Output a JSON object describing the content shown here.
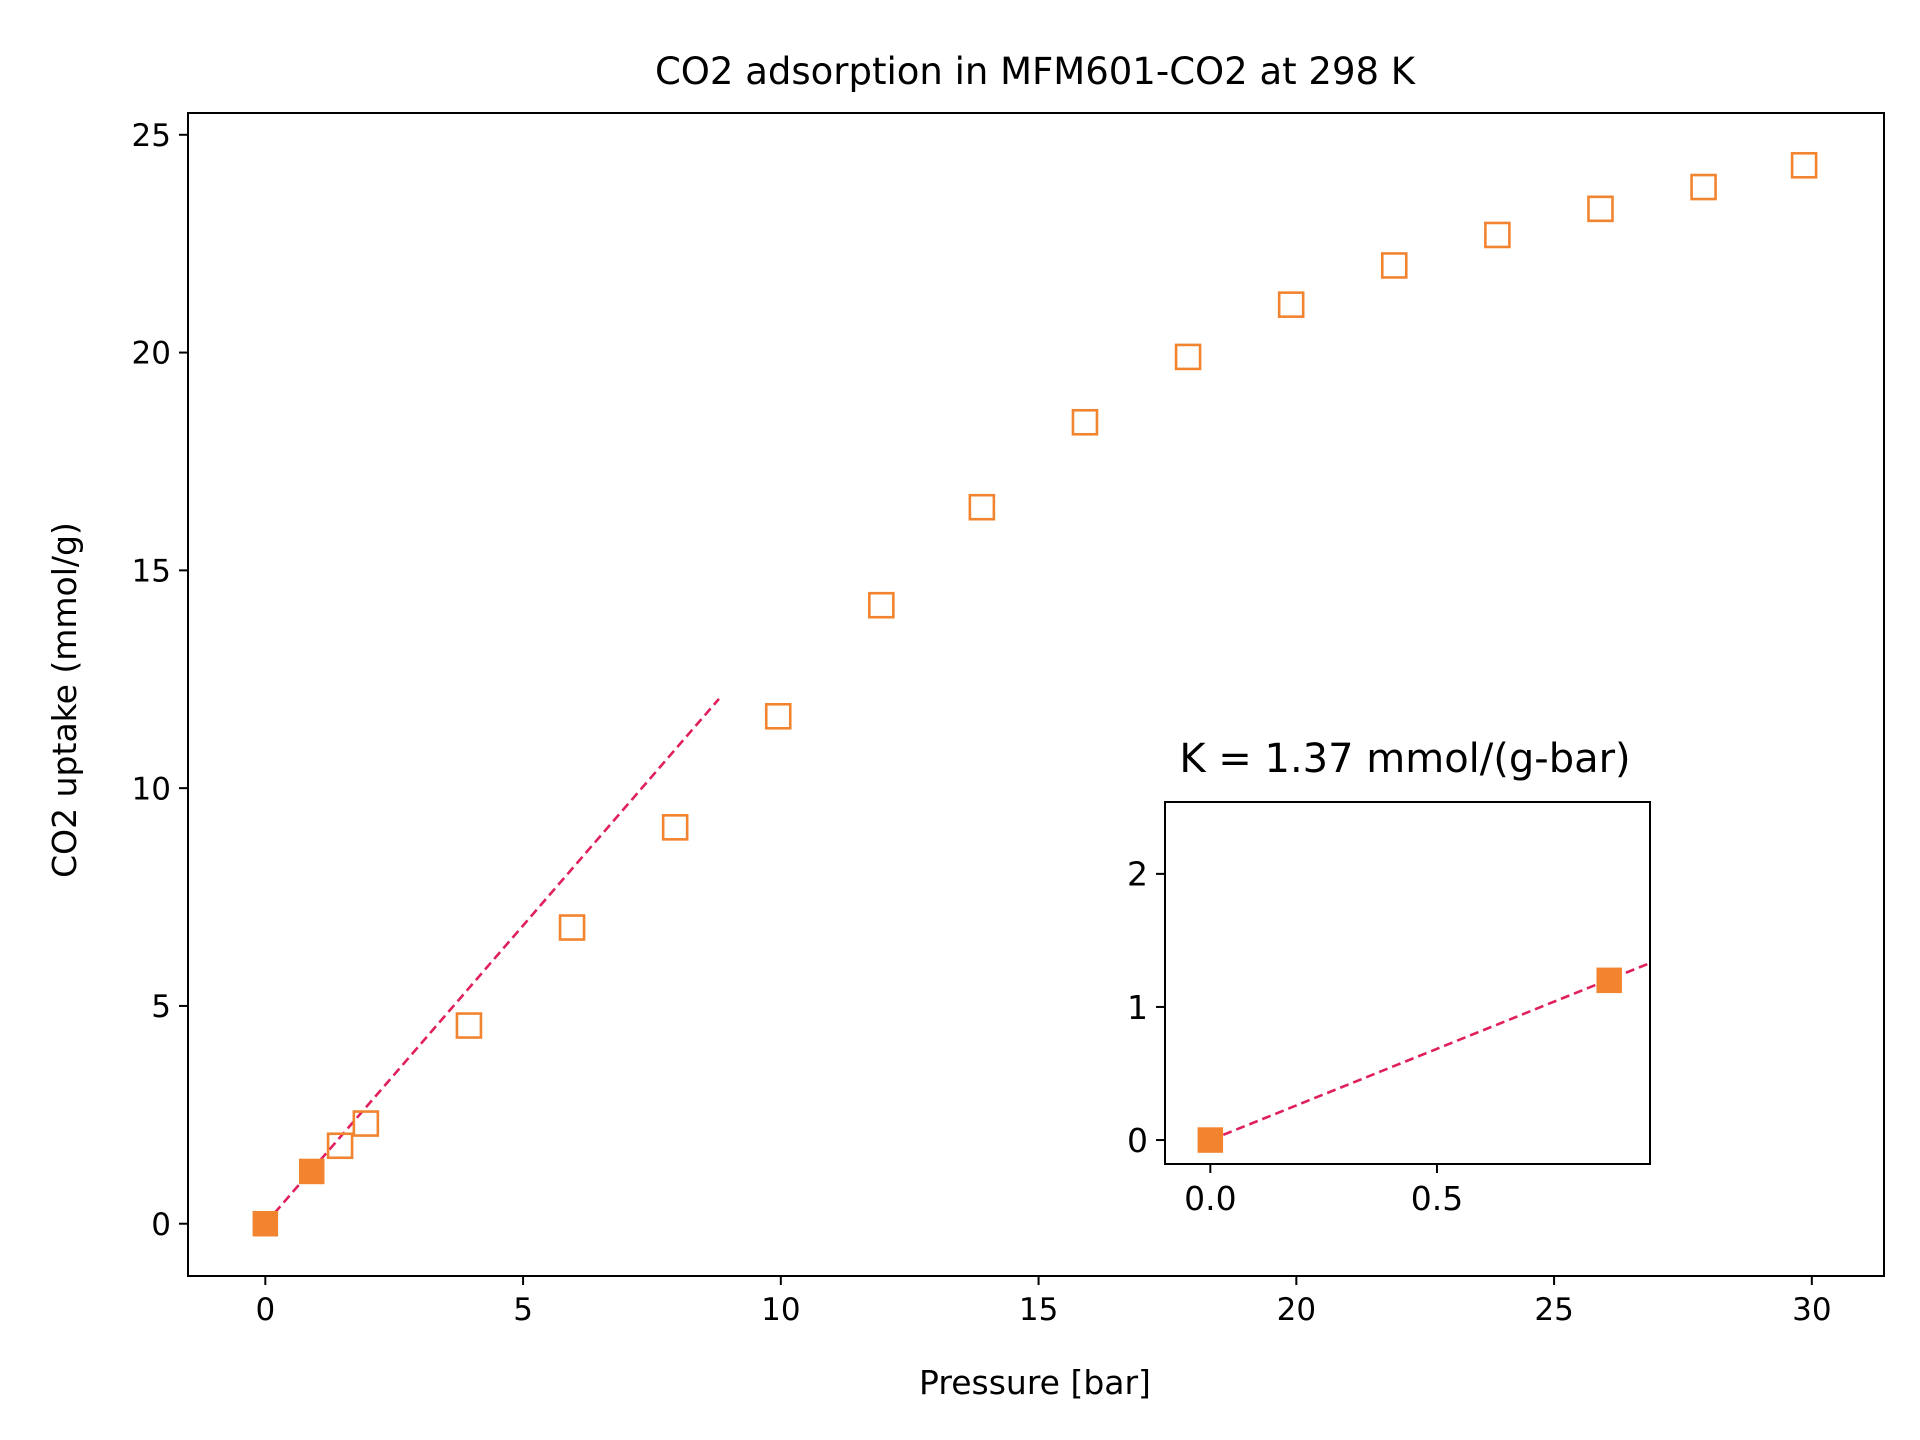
{
  "chart_data": [
    {
      "type": "scatter",
      "title": "CO2 adsorption in MFM601-CO2 at 298 K",
      "xlabel": "Pressure [bar]",
      "ylabel": "CO2 uptake (mmol/g)",
      "xlim": [
        -1.5,
        31.4
      ],
      "ylim": [
        -1.2,
        25.5
      ],
      "xticks": [
        0,
        5,
        10,
        15,
        20,
        25,
        30
      ],
      "yticks": [
        0,
        5,
        10,
        15,
        20,
        25
      ],
      "grid": false,
      "legend": "none",
      "series": [
        {
          "marker": "open-square",
          "color": "#F28430",
          "points": [
            {
              "x": 1.45,
              "y": 1.79
            },
            {
              "x": 1.95,
              "y": 2.3
            },
            {
              "x": 3.95,
              "y": 4.55
            },
            {
              "x": 5.95,
              "y": 6.8
            },
            {
              "x": 7.95,
              "y": 9.1
            },
            {
              "x": 9.95,
              "y": 11.65
            },
            {
              "x": 11.95,
              "y": 14.2
            },
            {
              "x": 13.9,
              "y": 16.45
            },
            {
              "x": 15.9,
              "y": 18.4
            },
            {
              "x": 17.9,
              "y": 19.9
            },
            {
              "x": 19.9,
              "y": 21.1
            },
            {
              "x": 21.9,
              "y": 22.0
            },
            {
              "x": 23.9,
              "y": 22.7
            },
            {
              "x": 25.9,
              "y": 23.3
            },
            {
              "x": 27.9,
              "y": 23.8
            },
            {
              "x": 29.85,
              "y": 24.3
            }
          ]
        },
        {
          "marker": "filled-square",
          "color": "#F28430",
          "points": [
            {
              "x": 0.0,
              "y": 0.0
            },
            {
              "x": 0.9,
              "y": 1.2
            }
          ]
        },
        {
          "type": "line",
          "style": "dashed",
          "color": "#E0205A",
          "points": [
            {
              "x": 0.0,
              "y": 0.0
            },
            {
              "x": 8.8,
              "y": 12.05
            }
          ]
        }
      ]
    },
    {
      "type": "scatter",
      "title": "K = 1.37 mmol/(g-bar)",
      "xlim": [
        -0.1,
        0.97
      ],
      "ylim": [
        -0.18,
        2.54
      ],
      "xticks": [
        0.0,
        0.5
      ],
      "xtick_labels": [
        "0.0",
        "0.5"
      ],
      "yticks": [
        0,
        1,
        2
      ],
      "grid": false,
      "legend": "none",
      "series": [
        {
          "marker": "filled-square",
          "color": "#F28430",
          "points": [
            {
              "x": 0.0,
              "y": 0.0
            },
            {
              "x": 0.88,
              "y": 1.2
            }
          ]
        },
        {
          "type": "line",
          "style": "dashed",
          "color": "#E0205A",
          "points": [
            {
              "x": 0.0,
              "y": 0.0
            },
            {
              "x": 0.97,
              "y": 1.33
            }
          ]
        }
      ]
    }
  ]
}
